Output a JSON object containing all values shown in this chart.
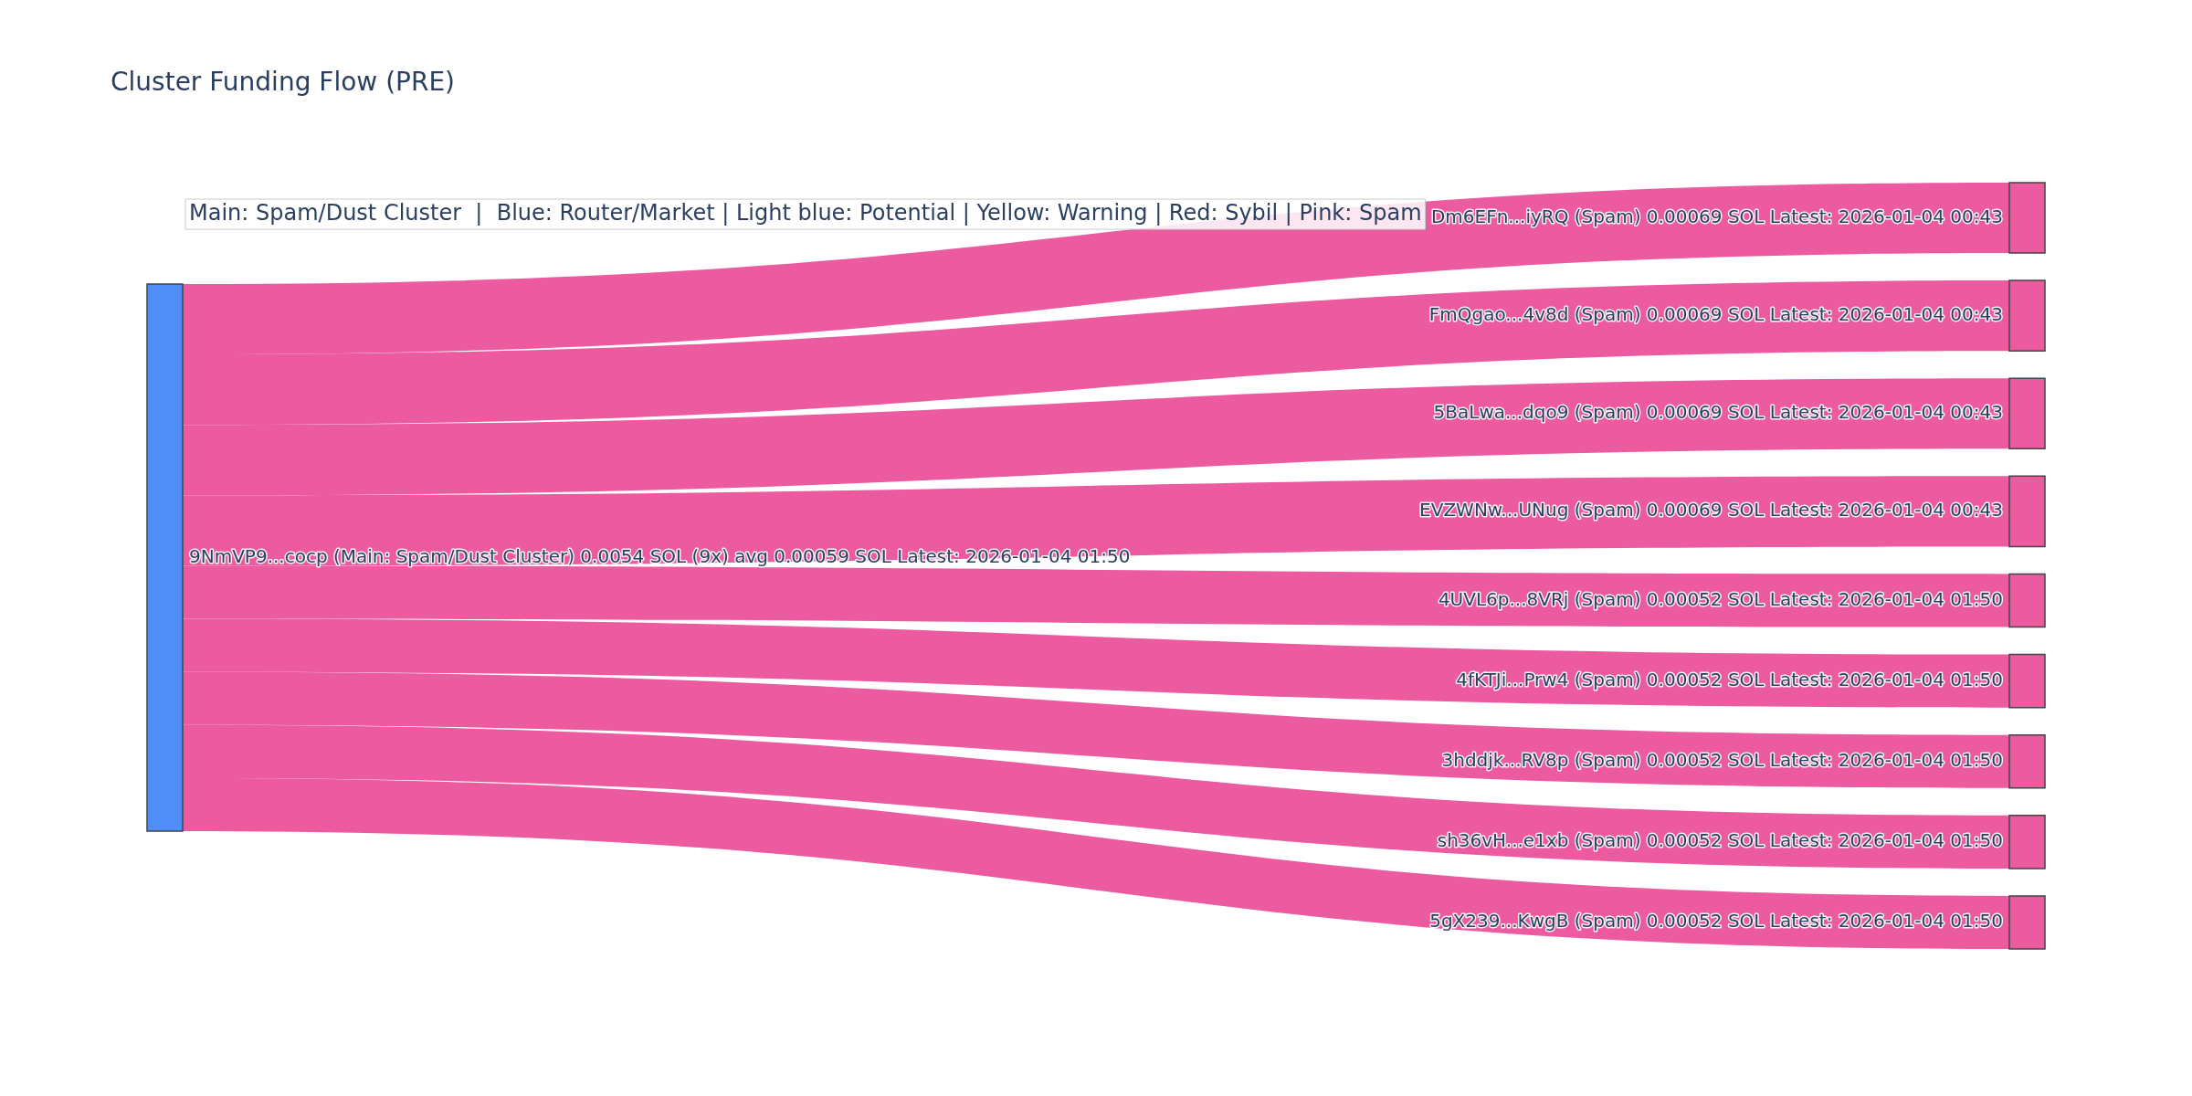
{
  "chart_data": {
    "type": "other",
    "title": "Cluster Funding Flow (PRE)",
    "categories": [
      "9NmVP9...cocp (Main: Spam/Dust Cluster) 0.0054 SOL (9x) avg 0.00059 SOL Latest: 2026-01-04 01:50",
      "Dm6EFn...iyRQ (Spam)",
      "FmQgao...4v8d (Spam)",
      "5BaLwa...dqo9 (Spam)",
      "EVZWNw...UNug (Spam)",
      "4UVL6p...8VRj (Spam)",
      "4fKTJi...Prw4 (Spam)",
      "3hddjk...RV8p (Spam)",
      "sh36vH...e1xb (Spam)",
      "5gX239...KwgB (Spam)"
    ],
    "values": [
      null,
      0.00069,
      0.00069,
      0.00069,
      0.00069,
      0.00052,
      0.00052,
      0.00052,
      0.00052,
      0.00052
    ],
    "value_labels": [
      null,
      "0.00069 SOL Latest: 2026-01-04 00:43",
      "0.00069 SOL Latest: 2026-01-04 00:43",
      "0.00069 SOL Latest: 2026-01-04 00:43",
      "0.00069 SOL Latest: 2026-01-04 00:43",
      "0.00052 SOL Latest: 2026-01-04 01:50",
      "0.00052 SOL Latest: 2026-01-04 01:50",
      "0.00052 SOL Latest: 2026-01-04 01:50",
      "0.00052 SOL Latest: 2026-01-04 01:50",
      "0.00052 SOL Latest: 2026-01-04 01:50"
    ],
    "colors": [
      "#4f8ef7",
      "#ec5aa0",
      "#ec5aa0",
      "#ec5aa0",
      "#ec5aa0",
      "#ec5aa0",
      "#ec5aa0",
      "#ec5aa0",
      "#ec5aa0",
      "#ec5aa0"
    ],
    "annotations": [
      "Main: Spam/Dust Cluster  |  Blue: Router/Market | Light blue: Potential | Yellow: Warning | Red: Sybil | Pink: Spam"
    ]
  }
}
